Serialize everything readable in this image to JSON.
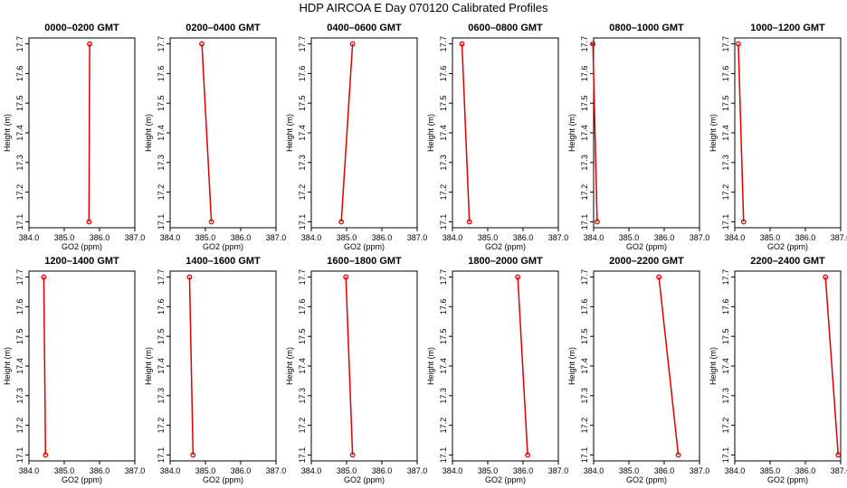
{
  "figure": {
    "title": "HDP  AIRCOA E  Day 070120  Calibrated Profiles",
    "colors": {
      "series": "#dd0000",
      "axes": "#000000",
      "background": "#ffffff"
    }
  },
  "chart_data": [
    {
      "type": "line",
      "title": "0000–0200 GMT",
      "xlabel": "GO2 (ppm)",
      "ylabel": "Height (m)",
      "xlim": [
        384,
        387
      ],
      "ylim": [
        17.08,
        17.72
      ],
      "xticks": [
        "384.0",
        "385.0",
        "386.0",
        "387.0"
      ],
      "yticks": [
        "17.1",
        "17.2",
        "17.3",
        "17.4",
        "17.5",
        "17.6",
        "17.7"
      ],
      "points": [
        {
          "x": 385.7,
          "y": 17.1
        },
        {
          "x": 385.72,
          "y": 17.7
        }
      ]
    },
    {
      "type": "line",
      "title": "0200–0400 GMT",
      "xlabel": "GO2 (ppm)",
      "ylabel": "Height (m)",
      "xlim": [
        384,
        387
      ],
      "ylim": [
        17.08,
        17.72
      ],
      "xticks": [
        "384.0",
        "385.0",
        "386.0",
        "387.0"
      ],
      "yticks": [
        "17.1",
        "17.2",
        "17.3",
        "17.4",
        "17.5",
        "17.6",
        "17.7"
      ],
      "points": [
        {
          "x": 385.17,
          "y": 17.1
        },
        {
          "x": 384.9,
          "y": 17.7
        }
      ]
    },
    {
      "type": "line",
      "title": "0400–0600 GMT",
      "xlabel": "GO2 (ppm)",
      "ylabel": "Height (m)",
      "xlim": [
        384,
        387
      ],
      "ylim": [
        17.08,
        17.72
      ],
      "xticks": [
        "384.0",
        "385.0",
        "386.0",
        "387.0"
      ],
      "yticks": [
        "17.1",
        "17.2",
        "17.3",
        "17.4",
        "17.5",
        "17.6",
        "17.7"
      ],
      "points": [
        {
          "x": 384.85,
          "y": 17.1
        },
        {
          "x": 385.17,
          "y": 17.7
        }
      ]
    },
    {
      "type": "line",
      "title": "0600–0800 GMT",
      "xlabel": "GO2 (ppm)",
      "ylabel": "Height (m)",
      "xlim": [
        384,
        387
      ],
      "ylim": [
        17.08,
        17.72
      ],
      "xticks": [
        "384.0",
        "385.0",
        "386.0",
        "387.0"
      ],
      "yticks": [
        "17.1",
        "17.2",
        "17.3",
        "17.4",
        "17.5",
        "17.6",
        "17.7"
      ],
      "points": [
        {
          "x": 384.48,
          "y": 17.1
        },
        {
          "x": 384.27,
          "y": 17.7
        }
      ]
    },
    {
      "type": "line",
      "title": "0800–1000 GMT",
      "xlabel": "GO2 (ppm)",
      "ylabel": "Height (m)",
      "xlim": [
        384,
        387
      ],
      "ylim": [
        17.08,
        17.72
      ],
      "xticks": [
        "384.0",
        "385.0",
        "386.0",
        "387.0"
      ],
      "yticks": [
        "17.1",
        "17.2",
        "17.3",
        "17.4",
        "17.5",
        "17.6",
        "17.7"
      ],
      "points": [
        {
          "x": 384.1,
          "y": 17.1
        },
        {
          "x": 383.98,
          "y": 17.7
        }
      ]
    },
    {
      "type": "line",
      "title": "1000–1200 GMT",
      "xlabel": "GO2 (ppm)",
      "ylabel": "Height (m)",
      "xlim": [
        384,
        387
      ],
      "ylim": [
        17.08,
        17.72
      ],
      "xticks": [
        "384.0",
        "385.0",
        "386.0",
        "387.0"
      ],
      "yticks": [
        "17.1",
        "17.2",
        "17.3",
        "17.4",
        "17.5",
        "17.6",
        "17.7"
      ],
      "points": [
        {
          "x": 384.25,
          "y": 17.1
        },
        {
          "x": 384.1,
          "y": 17.7
        }
      ]
    },
    {
      "type": "line",
      "title": "1200–1400 GMT",
      "xlabel": "GO2 (ppm)",
      "ylabel": "Height (m)",
      "xlim": [
        384,
        387
      ],
      "ylim": [
        17.08,
        17.72
      ],
      "xticks": [
        "384.0",
        "385.0",
        "386.0",
        "387.0"
      ],
      "yticks": [
        "17.1",
        "17.2",
        "17.3",
        "17.4",
        "17.5",
        "17.6",
        "17.7"
      ],
      "points": [
        {
          "x": 384.47,
          "y": 17.1
        },
        {
          "x": 384.42,
          "y": 17.7
        }
      ]
    },
    {
      "type": "line",
      "title": "1400–1600 GMT",
      "xlabel": "GO2 (ppm)",
      "ylabel": "Height (m)",
      "xlim": [
        384,
        387
      ],
      "ylim": [
        17.08,
        17.72
      ],
      "xticks": [
        "384.0",
        "385.0",
        "386.0",
        "387.0"
      ],
      "yticks": [
        "17.1",
        "17.2",
        "17.3",
        "17.4",
        "17.5",
        "17.6",
        "17.7"
      ],
      "points": [
        {
          "x": 384.65,
          "y": 17.1
        },
        {
          "x": 384.55,
          "y": 17.7
        }
      ]
    },
    {
      "type": "line",
      "title": "1600–1800 GMT",
      "xlabel": "GO2 (ppm)",
      "ylabel": "Height (m)",
      "xlim": [
        384,
        387
      ],
      "ylim": [
        17.08,
        17.72
      ],
      "xticks": [
        "384.0",
        "385.0",
        "386.0",
        "387.0"
      ],
      "yticks": [
        "17.1",
        "17.2",
        "17.3",
        "17.4",
        "17.5",
        "17.6",
        "17.7"
      ],
      "points": [
        {
          "x": 385.17,
          "y": 17.1
        },
        {
          "x": 384.98,
          "y": 17.7
        }
      ]
    },
    {
      "type": "line",
      "title": "1800–2000 GMT",
      "xlabel": "GO2 (ppm)",
      "ylabel": "Height (m)",
      "xlim": [
        384,
        387
      ],
      "ylim": [
        17.08,
        17.72
      ],
      "xticks": [
        "384.0",
        "385.0",
        "386.0",
        "387.0"
      ],
      "yticks": [
        "17.1",
        "17.2",
        "17.3",
        "17.4",
        "17.5",
        "17.6",
        "17.7"
      ],
      "points": [
        {
          "x": 386.13,
          "y": 17.1
        },
        {
          "x": 385.85,
          "y": 17.7
        }
      ]
    },
    {
      "type": "line",
      "title": "2000–2200 GMT",
      "xlabel": "GO2 (ppm)",
      "ylabel": "Height (m)",
      "xlim": [
        384,
        387
      ],
      "ylim": [
        17.08,
        17.72
      ],
      "xticks": [
        "384.0",
        "385.0",
        "386.0",
        "387.0"
      ],
      "yticks": [
        "17.1",
        "17.2",
        "17.3",
        "17.4",
        "17.5",
        "17.6",
        "17.7"
      ],
      "points": [
        {
          "x": 386.4,
          "y": 17.1
        },
        {
          "x": 385.85,
          "y": 17.7
        }
      ]
    },
    {
      "type": "line",
      "title": "2200–2400 GMT",
      "xlabel": "GO2 (ppm)",
      "ylabel": "Height (m)",
      "xlim": [
        384,
        387
      ],
      "ylim": [
        17.08,
        17.72
      ],
      "xticks": [
        "384.0",
        "385.0",
        "386.0",
        "387.0"
      ],
      "yticks": [
        "17.1",
        "17.2",
        "17.3",
        "17.4",
        "17.5",
        "17.6",
        "17.7"
      ],
      "points": [
        {
          "x": 386.93,
          "y": 17.1
        },
        {
          "x": 386.57,
          "y": 17.7
        }
      ]
    }
  ]
}
